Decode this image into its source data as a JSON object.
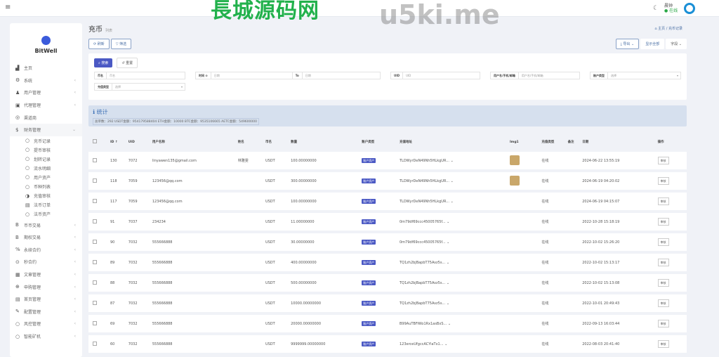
{
  "header": {
    "user_name": "晨钟",
    "status": "在线"
  },
  "sidebar": {
    "brand": "BitWell",
    "items": [
      {
        "icon": "chart-icon",
        "label": "主页",
        "chev": false
      },
      {
        "icon": "gear-icon",
        "label": "系统",
        "chev": true
      },
      {
        "icon": "user-icon",
        "label": "用户管理",
        "chev": true
      },
      {
        "icon": "id-card-icon",
        "label": "代理管理",
        "chev": true
      },
      {
        "icon": "circle-user-icon",
        "label": "渠道商",
        "chev": false
      },
      {
        "icon": "dollar-icon",
        "label": "财务管理",
        "chev": true,
        "open": true
      },
      {
        "icon": "circle-icon",
        "label": "充币记录",
        "sub": true
      },
      {
        "icon": "circle-icon",
        "label": "提币审核",
        "sub": true
      },
      {
        "icon": "circle-icon",
        "label": "划转记录",
        "sub": true
      },
      {
        "icon": "circle-icon",
        "label": "流水明细",
        "sub": true
      },
      {
        "icon": "circle-icon",
        "label": "用户资产",
        "sub": true
      },
      {
        "icon": "circle-icon",
        "label": "币种列表",
        "sub": true
      },
      {
        "icon": "half-circle-icon",
        "label": "充值审核",
        "sub": true
      },
      {
        "icon": "list-icon",
        "label": "法币订单",
        "sub": true
      },
      {
        "icon": "circle-icon",
        "label": "法币资产",
        "sub": true
      },
      {
        "icon": "bitcoin-icon",
        "label": "币币交易",
        "chev": true
      },
      {
        "icon": "bitcoin-icon",
        "label": "期权交易",
        "chev": true
      },
      {
        "icon": "link-icon",
        "label": "永续合约",
        "chev": true
      },
      {
        "icon": "clock-icon",
        "label": "秒合约",
        "chev": true
      },
      {
        "icon": "doc-icon",
        "label": "文章管理",
        "chev": true
      },
      {
        "icon": "lifebuoy-icon",
        "label": "申购管理",
        "chev": true
      },
      {
        "icon": "list-icon",
        "label": "首页管理",
        "chev": true
      },
      {
        "icon": "wrench-icon",
        "label": "配置管理",
        "chev": true
      },
      {
        "icon": "circle-icon",
        "label": "风控管理",
        "chev": true
      },
      {
        "icon": "circle-icon",
        "label": "智能矿机",
        "chev": true
      }
    ]
  },
  "page": {
    "title": "充币",
    "subtitle": "列表",
    "breadcrumb": [
      "主页",
      "充币记录"
    ],
    "refresh": "刷新",
    "filter": "筛选",
    "export": "导出",
    "show_all": "显示全部",
    "columns": "字段"
  },
  "filters": {
    "search": "搜索",
    "reset": "重置",
    "fields": [
      {
        "label": "币名",
        "ph": "币名"
      },
      {
        "label": "时间 ⊙",
        "ph": "日期",
        "to": "To",
        "ph2": "日期"
      },
      {
        "label": "UID",
        "ph": "UID"
      },
      {
        "label": "用户名/手机/邮箱",
        "ph": "用户名/手机/邮箱"
      },
      {
        "label": "账户类型",
        "ph": "选择"
      }
    ],
    "type_label": "充值类型",
    "type_ph": "选择"
  },
  "stats": {
    "title": "统计",
    "line": "总单数：292  USDT金额：954179588404  ETH金额：10000  BTC金额：9535106665  AETC金额：549600000"
  },
  "table": {
    "headers": [
      "ID ↑",
      "UID",
      "用户名称",
      "姓名",
      "币名",
      "数量",
      "账户类型",
      "充值地址",
      "Img1",
      "充值类型",
      "备注",
      "日期",
      "操作"
    ],
    "rows": [
      [
        "130",
        "7072",
        "linyawen135@gmail.com",
        "林雅雯",
        "USDT",
        "100.00000000",
        "账户资产",
        "TLDWyrDeN49Nh5HLkgUR...",
        "img",
        "在线",
        "",
        "2024-06-22 13:55:19",
        "审核"
      ],
      [
        "118",
        "7059",
        "123456@qq.com",
        "",
        "USDT",
        "300.00000000",
        "账户资产",
        "TLDWyrDeN49Nh5HLkgUR...",
        "img",
        "在线",
        "",
        "2024-06-19 04:20:02",
        "审核"
      ],
      [
        "117",
        "7059",
        "123456@qq.com",
        "",
        "USDT",
        "100.00000000",
        "账户资产",
        "TLDWyrDeN49Nh5HLkgUR...",
        "",
        "在线",
        "",
        "2024-06-19 04:15:07",
        "审核"
      ],
      [
        "91",
        "7037",
        "234234",
        "",
        "USDT",
        "11.00000000",
        "账户资产",
        "0m79df69ccc45005765f...",
        "",
        "在线",
        "",
        "2022-10-28 15:18:19",
        "审核"
      ],
      [
        "90",
        "7032",
        "555666888",
        "",
        "USDT",
        "30.00000000",
        "账户资产",
        "0m79df69ccc45005765f...",
        "",
        "在线",
        "",
        "2022-10-02 15:26:20",
        "审核"
      ],
      [
        "89",
        "7032",
        "555666888",
        "",
        "USDT",
        "400.00000000",
        "账户资产",
        "TQ1zh2bjBapbT75Avz5s...",
        "",
        "在线",
        "",
        "2022-10-02 15:13:17",
        "审核"
      ],
      [
        "88",
        "7032",
        "555666888",
        "",
        "USDT",
        "500.00000000",
        "账户资产",
        "TQ1zh2bjBapbT75Avz5s...",
        "",
        "在线",
        "",
        "2022-10-02 15:13:08",
        "审核"
      ],
      [
        "87",
        "7032",
        "555666888",
        "",
        "USDT",
        "10000.00000000",
        "账户资产",
        "TQ1zh2bjBapbT75Avz5s...",
        "",
        "在线",
        "",
        "2022-10-01 20:49:43",
        "审核"
      ],
      [
        "69",
        "7032",
        "555666888",
        "",
        "USDT",
        "20000.00000000",
        "账户资产",
        "B99AuTBFiWo1Rx1asBxS...",
        "",
        "在线",
        "",
        "2022-09-13 16:03:44",
        "审核"
      ],
      [
        "60",
        "7032",
        "555666888",
        "",
        "USDT",
        "9999999.00000000",
        "账户资产",
        "123erceUfgccACYiaTx1...",
        "",
        "在线",
        "",
        "2022-08-03 20:41:40",
        "审核"
      ]
    ]
  },
  "watermarks": [
    "长城源码网",
    "u5ki.me"
  ],
  "colors": {
    "primary": "#4b59c4",
    "stats_bg": "#d6e0ee",
    "watermark_green": "#22b14c"
  }
}
